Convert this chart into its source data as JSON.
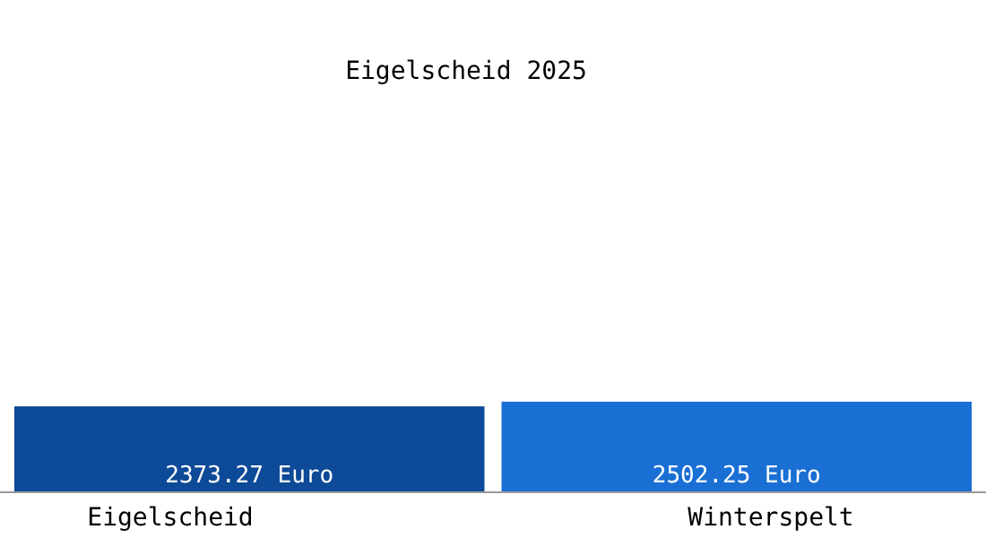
{
  "chart_data": {
    "type": "bar",
    "title": "Eigelscheid 2025",
    "categories": [
      "Eigelscheid",
      "Winterspelt"
    ],
    "values": [
      2373.27,
      2502.25
    ],
    "colors": [
      "#0d4a97",
      "#1a6fd4"
    ],
    "value_labels": [
      "2373.27 Euro",
      "2502.25 Euro"
    ],
    "tick_labels": "x"
  }
}
